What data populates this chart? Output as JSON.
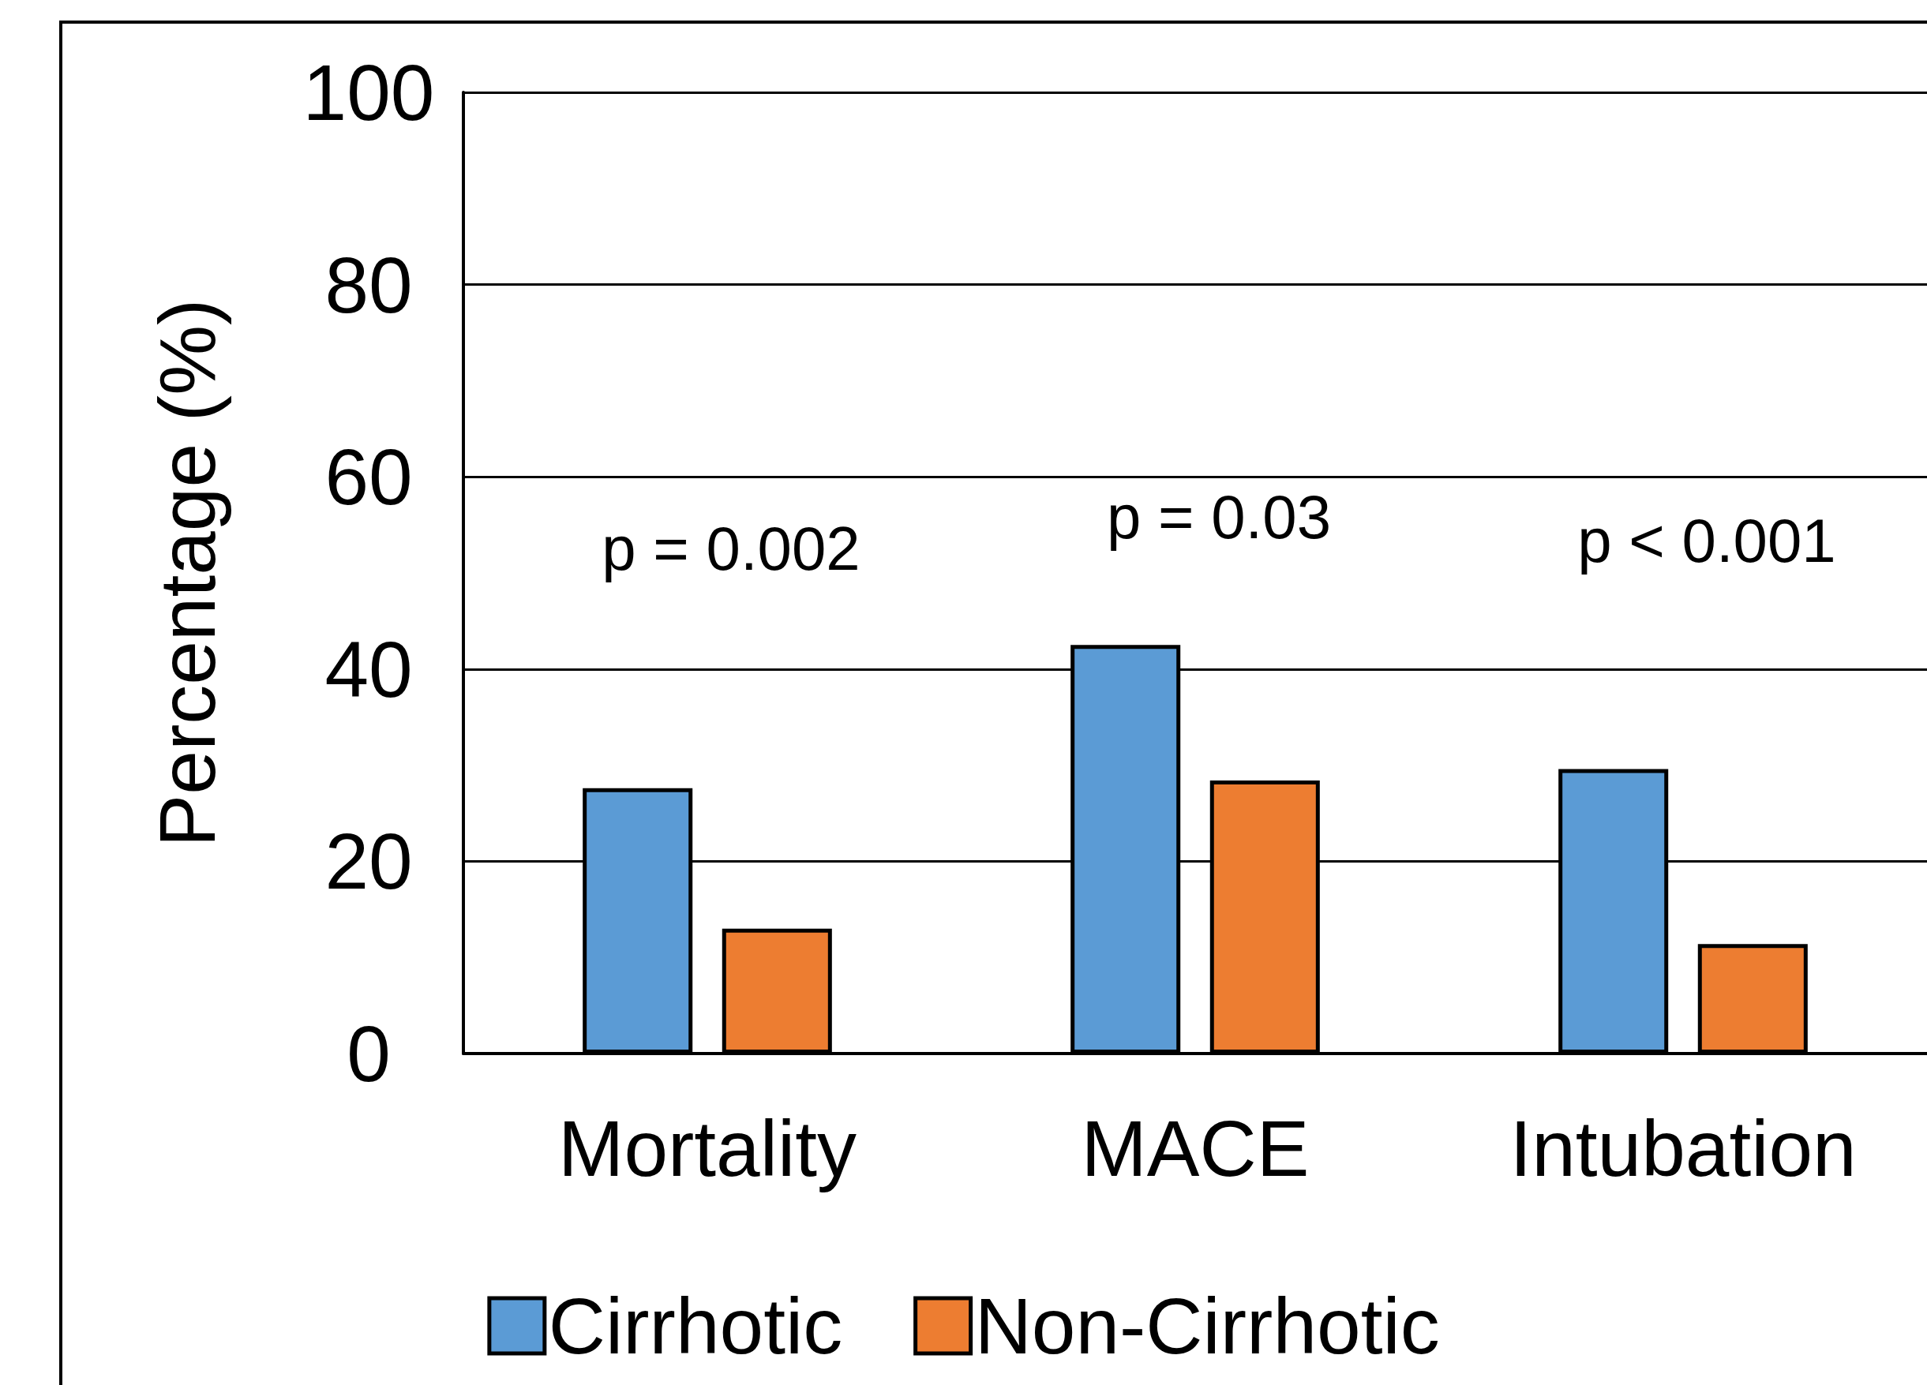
{
  "chart_data": {
    "type": "bar",
    "ylabel": "Percentage (%)",
    "categories": [
      "Mortality",
      "MACE",
      "Intubation"
    ],
    "series": [
      {
        "name": "Cirrhotic",
        "color": "#5b9bd5",
        "values": [
          27.6,
          42.5,
          29.6
        ]
      },
      {
        "name": "Non-Cirrhotic",
        "color": "#ed7d31",
        "values": [
          13.0,
          28.4,
          11.4
        ]
      }
    ],
    "ylim": [
      0,
      100
    ],
    "yticks": [
      0,
      20,
      40,
      60,
      80,
      100
    ],
    "grid": "y",
    "legend": "bottom",
    "annotations": [
      "p = 0.002",
      "p = 0.03",
      "p < 0.001"
    ]
  }
}
